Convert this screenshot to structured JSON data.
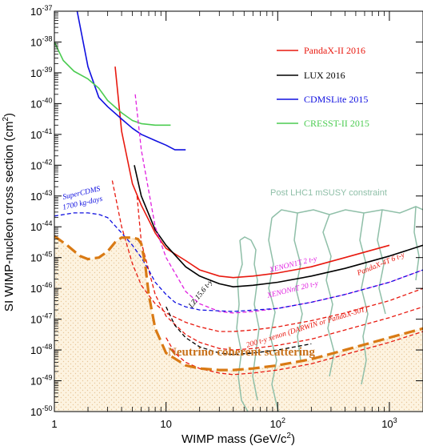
{
  "chart_data": {
    "type": "line",
    "x_scale": "log",
    "y_scale": "log",
    "xlim": [
      1,
      2000
    ],
    "ylim": [
      1e-50,
      1e-37
    ],
    "xlabel": "WIMP mass (GeV/c",
    "xlabel_sup": "2",
    "xlabel_end": ")",
    "ylabel": "SI WIMP-nucleon cross section (cm",
    "ylabel_sup": "2",
    "ylabel_end": ")",
    "x_ticks": [
      {
        "base": "1",
        "exp": "",
        "value": 1
      },
      {
        "base": "10",
        "exp": "",
        "value": 10
      },
      {
        "base": "10",
        "exp": "2",
        "value": 100
      },
      {
        "base": "10",
        "exp": "3",
        "value": 1000
      }
    ],
    "y_ticks": [
      {
        "base": "10",
        "exp": "-37",
        "value": -37
      },
      {
        "base": "10",
        "exp": "-38",
        "value": -38
      },
      {
        "base": "10",
        "exp": "-39",
        "value": -39
      },
      {
        "base": "10",
        "exp": "-40",
        "value": -40
      },
      {
        "base": "10",
        "exp": "-41",
        "value": -41
      },
      {
        "base": "10",
        "exp": "-42",
        "value": -42
      },
      {
        "base": "10",
        "exp": "-43",
        "value": -43
      },
      {
        "base": "10",
        "exp": "-44",
        "value": -44
      },
      {
        "base": "10",
        "exp": "-45",
        "value": -45
      },
      {
        "base": "10",
        "exp": "-46",
        "value": -46
      },
      {
        "base": "10",
        "exp": "-47",
        "value": -47
      },
      {
        "base": "10",
        "exp": "-48",
        "value": -48
      },
      {
        "base": "10",
        "exp": "-49",
        "value": -49
      },
      {
        "base": "10",
        "exp": "-50",
        "value": -50
      }
    ],
    "series": [
      {
        "name": "PandaX-II 2016",
        "color": "#e8190f",
        "dash": "solid",
        "width": 1.6,
        "legend": true,
        "x": [
          3.5,
          4,
          5,
          6,
          8,
          10,
          15,
          20,
          30,
          40,
          60,
          100,
          200,
          400,
          1000
        ],
        "y": [
          -38.8,
          -40.9,
          -42.6,
          -43.3,
          -44.2,
          -44.7,
          -45.1,
          -45.4,
          -45.6,
          -45.65,
          -45.6,
          -45.5,
          -45.3,
          -45.0,
          -44.6
        ]
      },
      {
        "name": "LUX 2016",
        "color": "#000000",
        "dash": "solid",
        "width": 1.6,
        "legend": true,
        "x": [
          5.2,
          6,
          8,
          10,
          15,
          20,
          30,
          40,
          60,
          100,
          200,
          400,
          1000,
          2000
        ],
        "y": [
          -42.0,
          -43.0,
          -44.1,
          -44.6,
          -45.3,
          -45.6,
          -45.85,
          -45.95,
          -45.9,
          -45.8,
          -45.6,
          -45.35,
          -44.95,
          -44.6
        ]
      },
      {
        "name": "CDMSLite 2015",
        "color": "#1010e0",
        "dash": "solid",
        "width": 1.6,
        "legend": true,
        "x": [
          1.6,
          2,
          2.5,
          3,
          4,
          5,
          6,
          8,
          10,
          12,
          15
        ],
        "y": [
          -37,
          -38.8,
          -39.8,
          -40.1,
          -40.5,
          -40.8,
          -41.0,
          -41.2,
          -41.35,
          -41.5,
          -41.5
        ]
      },
      {
        "name": "CRESST-II 2015",
        "color": "#4ccc52",
        "dash": "solid",
        "width": 1.6,
        "legend": true,
        "x": [
          1,
          1.2,
          1.5,
          2,
          2.5,
          3,
          4,
          5,
          6,
          8,
          11
        ],
        "y": [
          -38.0,
          -38.6,
          -38.95,
          -39.2,
          -39.5,
          -39.9,
          -40.3,
          -40.55,
          -40.65,
          -40.7,
          -40.7
        ]
      },
      {
        "name": "PandaX-4T 6 t-y",
        "color": "#e8190f",
        "dash": "dashed",
        "width": 1.3,
        "legend": false,
        "x": [
          3.3,
          4,
          5,
          6,
          8,
          10,
          15,
          20,
          30,
          40,
          60,
          100,
          200,
          400,
          1000,
          2000
        ],
        "y": [
          -42.5,
          -44.0,
          -45.2,
          -45.9,
          -46.5,
          -46.8,
          -47.1,
          -47.25,
          -47.4,
          -47.4,
          -47.35,
          -47.25,
          -47.05,
          -46.8,
          -46.4,
          -46.0
        ]
      },
      {
        "name": "XENON1T 2 t-y",
        "color": "#e020e0",
        "dash": "dashed",
        "width": 1.3,
        "legend": false,
        "x": [
          5.3,
          6,
          8,
          10,
          15,
          20,
          30,
          40,
          60,
          100,
          200,
          400,
          1000,
          2000
        ],
        "y": [
          -39.7,
          -41.5,
          -44.0,
          -45.0,
          -46.1,
          -46.5,
          -46.75,
          -46.8,
          -46.75,
          -46.65,
          -46.45,
          -46.2,
          -45.8,
          -45.4
        ]
      },
      {
        "name": "XENONnT 20 t-y",
        "color": "#e8190f",
        "dash": "dashed",
        "width": 1.3,
        "legend": false,
        "x": [
          5.5,
          6,
          8,
          10,
          15,
          20,
          30,
          40,
          60,
          100,
          200,
          400,
          1000,
          2000
        ],
        "y": [
          -43.0,
          -44.5,
          -46.2,
          -46.9,
          -47.5,
          -47.75,
          -47.95,
          -48.0,
          -47.95,
          -47.85,
          -47.65,
          -47.35,
          -46.95,
          -46.6
        ]
      },
      {
        "name": "LZ 15.6 t-y",
        "color": "#000000",
        "dash": "dashed",
        "width": 1.3,
        "legend": false,
        "x": [
          10,
          12,
          15,
          20,
          30,
          40,
          60,
          100,
          200
        ],
        "y": [
          -46.6,
          -47.2,
          -47.6,
          -47.9,
          -48.1,
          -48.15,
          -48.1,
          -48.0,
          -47.8
        ]
      },
      {
        "name": "200 t-y xenon (DARWIN or PandaX-30T)",
        "color": "#e8190f",
        "dash": "dashed",
        "width": 1.3,
        "legend": false,
        "x": [
          10,
          12,
          15,
          20,
          30,
          40,
          60,
          100,
          200,
          400,
          1000,
          2000
        ],
        "y": [
          -47.6,
          -48.1,
          -48.4,
          -48.6,
          -48.75,
          -48.8,
          -48.75,
          -48.65,
          -48.45,
          -48.15,
          -47.75,
          -47.4
        ]
      },
      {
        "name": "SuperCDMS 1700 kg-days",
        "color": "#1010e0",
        "dash": "dashed",
        "width": 1.3,
        "legend": false,
        "x": [
          1,
          1.5,
          2,
          2.5,
          3,
          4,
          5,
          6,
          7,
          8,
          10,
          12,
          15,
          20,
          40,
          100,
          200,
          400,
          1000,
          2000
        ],
        "y": [
          -43.65,
          -43.55,
          -43.55,
          -43.6,
          -43.7,
          -44.2,
          -44.6,
          -45.0,
          -45.4,
          -45.8,
          -46.2,
          -46.45,
          -46.6,
          -46.7,
          -46.75,
          -46.65,
          -46.45,
          -46.2,
          -45.8,
          -45.4
        ]
      },
      {
        "name": "Neutrino coherent scattering",
        "color": "#d97a14",
        "dash": "longdash",
        "width": 3.2,
        "legend": false,
        "x": [
          1,
          1.3,
          1.7,
          2,
          2.5,
          3,
          3.5,
          4,
          5,
          5.6,
          6,
          6.5,
          7,
          8,
          10,
          15,
          20,
          30,
          40,
          60,
          100,
          200,
          400,
          1000,
          2000
        ],
        "y": [
          -44.3,
          -44.6,
          -44.95,
          -45.05,
          -45.0,
          -44.8,
          -44.5,
          -44.35,
          -44.35,
          -44.4,
          -44.55,
          -45.2,
          -46.2,
          -47.3,
          -48.1,
          -48.5,
          -48.6,
          -48.65,
          -48.65,
          -48.6,
          -48.5,
          -48.3,
          -48.0,
          -47.6,
          -47.3
        ]
      }
    ],
    "legend_entries": [
      "PandaX-II 2016",
      "LUX 2016",
      "CDMSLite 2015",
      "CRESST-II 2015"
    ],
    "annotations": [
      {
        "text": "SuperCDMS",
        "color": "#1010e0"
      },
      {
        "text": "1700 kg-days",
        "color": "#1010e0"
      },
      {
        "text": "Post LHC1 mSUSY constraint",
        "color": "#8fbfa8"
      },
      {
        "text": "XENON1T 2 t-y",
        "color": "#e020e0"
      },
      {
        "text": "PandaX-4T 6 t-y",
        "color": "#e8190f"
      },
      {
        "text": "XENONnT 20 t-y",
        "color": "#e020e0"
      },
      {
        "text": "LZ 15.6 t-y",
        "color": "#000000"
      },
      {
        "text": "200 t-y xenon (DARWIN or PandaX-30T)",
        "color": "#e8190f"
      },
      {
        "text": "Neutrino coherent scattering",
        "color": "#c8711a"
      }
    ],
    "grid": false,
    "legend_position": "top-right",
    "shaded_region": "neutrino floor"
  }
}
